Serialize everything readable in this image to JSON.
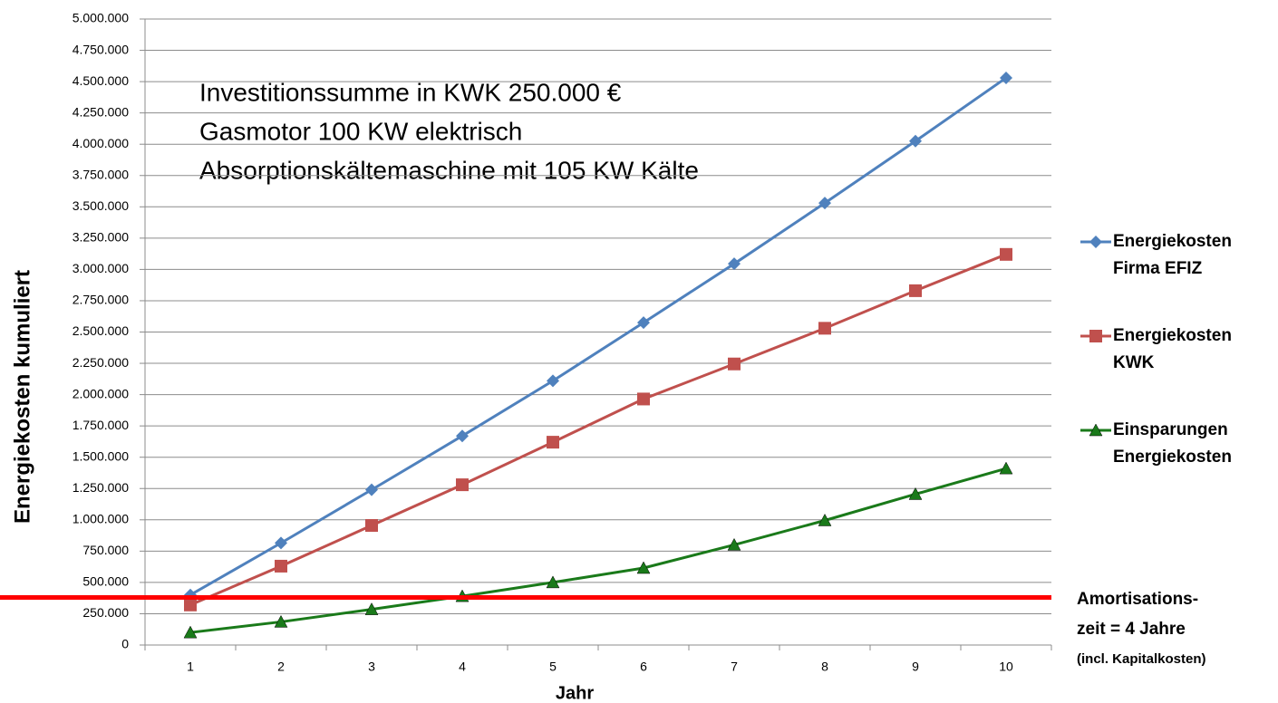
{
  "chart_data": {
    "type": "line",
    "x_label": "Jahr",
    "y_label": "Energiekosten kumuliert",
    "annotations": [
      "Investitionssumme in KWK 250.000 €",
      "Gasmotor 100 KW elektrisch",
      "Absorptionskältemaschine mit 105 KW Kälte"
    ],
    "note": [
      "Amortisations-",
      "zeit = 4 Jahre",
      "(incl. Kapitalkosten)"
    ],
    "threshold": {
      "value": 380000,
      "color": "#ff0000"
    },
    "categories": [
      "1",
      "2",
      "3",
      "4",
      "5",
      "6",
      "7",
      "8",
      "9",
      "10"
    ],
    "series": [
      {
        "name": "Energiekosten Firma EFIZ",
        "color": "#4f81bd",
        "marker": "diamond",
        "values": [
          400000,
          815000,
          1240000,
          1670000,
          2110000,
          2575000,
          3045000,
          3530000,
          4025000,
          4530000
        ]
      },
      {
        "name": "Energiekosten KWK",
        "color": "#c0504d",
        "marker": "square",
        "values": [
          320000,
          630000,
          955000,
          1280000,
          1620000,
          1965000,
          2245000,
          2530000,
          2830000,
          3120000
        ]
      },
      {
        "name": "Einsparungen Energiekosten",
        "color": "#1a7a1a",
        "marker": "triangle",
        "values": [
          100000,
          185000,
          285000,
          390000,
          500000,
          615000,
          800000,
          995000,
          1205000,
          1410000
        ]
      }
    ],
    "ylim": [
      0,
      5000000
    ],
    "yticks": [
      0,
      {
        "value": 250000,
        "label": "250.000"
      },
      {
        "value": 500000,
        "label": "500.000"
      },
      {
        "value": 750000,
        "label": "750.000"
      },
      {
        "value": 1000000,
        "label": "1.000.000"
      },
      {
        "value": 1250000,
        "label": "1.250.000"
      },
      {
        "value": 1500000,
        "label": "1.500.000"
      },
      {
        "value": 1750000,
        "label": "1.750.000"
      },
      {
        "value": 2000000,
        "label": "2.000.000"
      },
      {
        "value": 2250000,
        "label": "2.250.000"
      },
      {
        "value": 2500000,
        "label": "2.500.000"
      },
      {
        "value": 2750000,
        "label": "2.750.000"
      },
      {
        "value": 3000000,
        "label": "3.000.000"
      },
      {
        "value": 3250000,
        "label": "3.250.000"
      },
      {
        "value": 3500000,
        "label": "3.500.000"
      },
      {
        "value": 3750000,
        "label": "3.750.000"
      },
      {
        "value": 4000000,
        "label": "4.000.000"
      },
      {
        "value": 4250000,
        "label": "4.250.000"
      },
      {
        "value": 4500000,
        "label": "4.500.000"
      },
      {
        "value": 4750000,
        "label": "4.750.000"
      },
      {
        "value": 5000000,
        "label": "5.000.000"
      }
    ],
    "grid": true
  }
}
